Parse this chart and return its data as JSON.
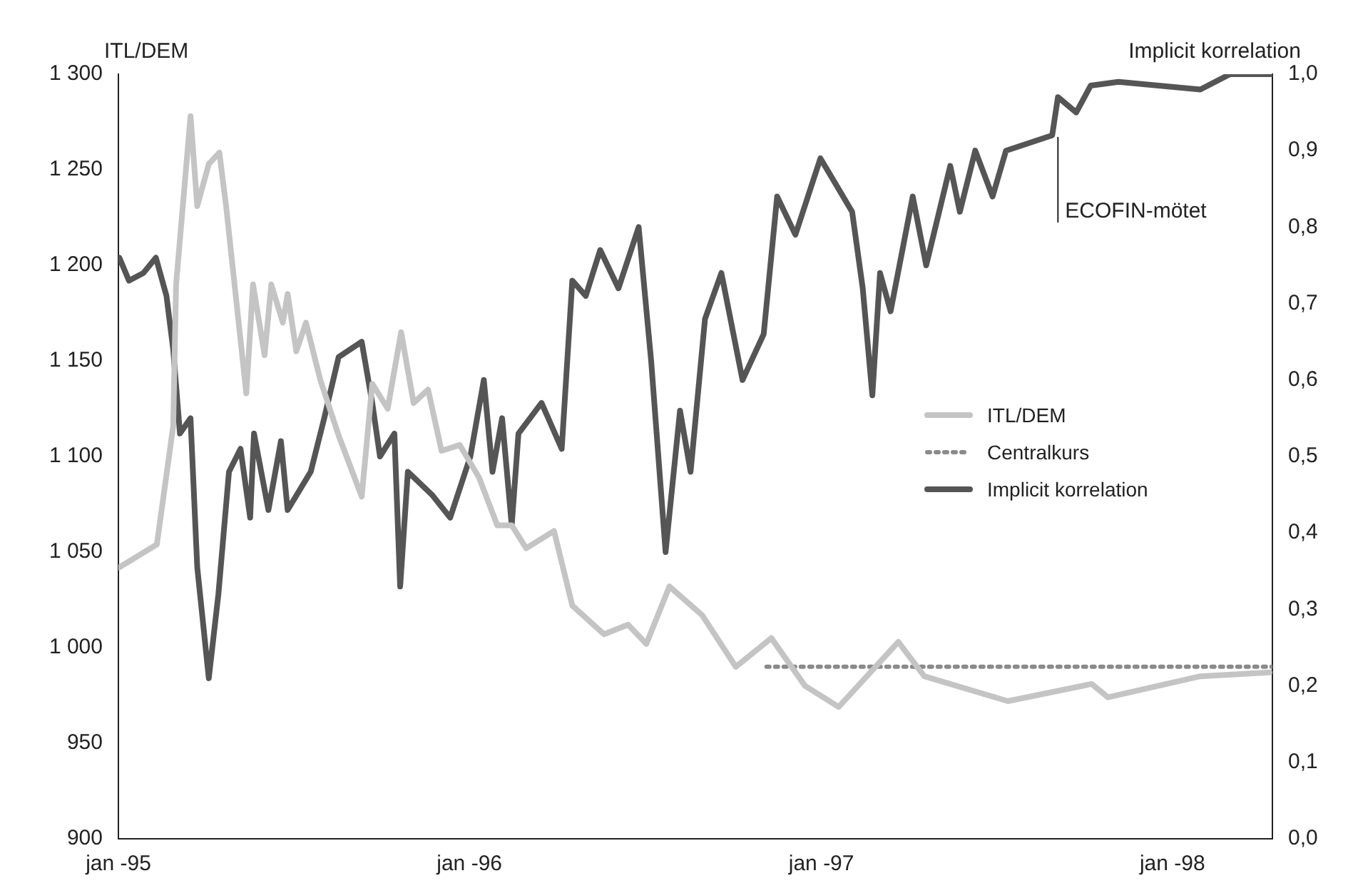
{
  "chart_data": {
    "type": "line",
    "ylabel": "ITL/DEM",
    "y2label": "Implicit korrelation",
    "xlim": [
      "1995-01-01",
      "1998-04-15"
    ],
    "xticks": [
      {
        "value": "1995-01-01",
        "label": "jan -95"
      },
      {
        "value": "1996-01-01",
        "label": "jan -96"
      },
      {
        "value": "1997-01-01",
        "label": "jan -97"
      },
      {
        "value": "1998-01-01",
        "label": "jan -98"
      }
    ],
    "ylim": [
      900,
      1300
    ],
    "yticks": [
      {
        "value": 900,
        "label": "900"
      },
      {
        "value": 950,
        "label": "950"
      },
      {
        "value": 1000,
        "label": "1 000"
      },
      {
        "value": 1050,
        "label": "1 050"
      },
      {
        "value": 1100,
        "label": "1 100"
      },
      {
        "value": 1150,
        "label": "1 150"
      },
      {
        "value": 1200,
        "label": "1 200"
      },
      {
        "value": 1250,
        "label": "1 250"
      },
      {
        "value": 1300,
        "label": "1 300"
      }
    ],
    "y2lim": [
      0,
      1
    ],
    "y2ticks": [
      {
        "value": 0,
        "label": "0,0"
      },
      {
        "value": 0.1,
        "label": "0,1"
      },
      {
        "value": 0.2,
        "label": "0,2"
      },
      {
        "value": 0.3,
        "label": "0,3"
      },
      {
        "value": 0.4,
        "label": "0,4"
      },
      {
        "value": 0.5,
        "label": "0,5"
      },
      {
        "value": 0.6,
        "label": "0,6"
      },
      {
        "value": 0.7,
        "label": "0,7"
      },
      {
        "value": 0.8,
        "label": "0,8"
      },
      {
        "value": 0.9,
        "label": "0,9"
      },
      {
        "value": 1,
        "label": "1,0"
      }
    ],
    "grid": false,
    "legend": "right",
    "marker": "none",
    "ref_lines": [
      {
        "axis": "x",
        "value": "1997-09-04",
        "label": "ECOFIN-mötet"
      }
    ],
    "series": [
      {
        "name": "ITL/DEM",
        "color": "#c4c4c4",
        "line_style": "solid",
        "x": [
          "1995-01-02",
          "1995-02-10",
          "1995-02-27",
          "1995-03-02",
          "1995-03-17",
          "1995-03-24",
          "1995-04-05",
          "1995-04-16",
          "1995-04-23",
          "1995-05-14",
          "1995-05-21",
          "1995-06-02",
          "1995-06-09",
          "1995-06-21",
          "1995-06-26",
          "1995-07-05",
          "1995-07-15",
          "1995-07-30",
          "1995-08-18",
          "1995-09-11",
          "1995-09-22",
          "1995-10-08",
          "1995-10-22",
          "1995-11-04",
          "1995-11-19",
          "1995-12-03",
          "1995-12-22",
          "1996-01-11",
          "1996-01-30",
          "1996-02-14",
          "1996-02-29",
          "1996-03-29",
          "1996-04-17",
          "1996-05-20",
          "1996-06-14",
          "1996-07-03",
          "1996-07-27",
          "1996-08-30",
          "1996-10-04",
          "1996-11-10",
          "1996-12-15",
          "1997-01-19",
          "1997-03-22",
          "1997-04-18",
          "1997-07-14",
          "1997-10-09",
          "1997-10-26",
          "1998-01-30",
          "1998-04-12"
        ],
        "values": [
          1042,
          1054,
          1116,
          1190,
          1278,
          1231,
          1253,
          1259,
          1231,
          1133,
          1190,
          1153,
          1190,
          1170,
          1185,
          1155,
          1170,
          1140,
          1111,
          1079,
          1138,
          1125,
          1165,
          1128,
          1135,
          1103,
          1106,
          1089,
          1064,
          1064,
          1052,
          1061,
          1022,
          1007,
          1012,
          1002,
          1032,
          1017,
          990,
          1005,
          980,
          969,
          1003,
          985,
          972,
          981,
          974,
          985,
          987
        ]
      },
      {
        "name": "Centralkurs",
        "color": "#8a8a8a",
        "line_style": "dotted",
        "x": [
          "1996-11-05",
          "1998-04-15"
        ],
        "values": [
          990,
          990
        ]
      },
      {
        "name": "Implicit korrelation",
        "color": "#555555",
        "line_style": "solid",
        "axis": "y2",
        "x": [
          "1995-01-02",
          "1995-01-12",
          "1995-01-27",
          "1995-02-09",
          "1995-02-20",
          "1995-02-27",
          "1995-03-06",
          "1995-03-17",
          "1995-03-24",
          "1995-04-05",
          "1995-04-15",
          "1995-04-26",
          "1995-05-08",
          "1995-05-18",
          "1995-05-22",
          "1995-06-06",
          "1995-06-19",
          "1995-06-26",
          "1995-07-20",
          "1995-08-03",
          "1995-08-18",
          "1995-09-11",
          "1995-09-22",
          "1995-09-30",
          "1995-10-15",
          "1995-10-21",
          "1995-10-29",
          "1995-11-23",
          "1995-12-12",
          "1996-01-02",
          "1996-01-16",
          "1996-01-25",
          "1996-02-04",
          "1996-02-14",
          "1996-02-21",
          "1996-03-16",
          "1996-04-06",
          "1996-04-17",
          "1996-05-01",
          "1996-05-16",
          "1996-06-04",
          "1996-06-25",
          "1996-07-08",
          "1996-07-23",
          "1996-08-07",
          "1996-08-18",
          "1996-09-02",
          "1996-09-19",
          "1996-10-11",
          "1996-11-02",
          "1996-11-16",
          "1996-12-05",
          "1996-12-31",
          "1997-02-02",
          "1997-02-13",
          "1997-02-23",
          "1997-03-03",
          "1997-03-14",
          "1997-04-06",
          "1997-04-20",
          "1997-05-15",
          "1997-05-25",
          "1997-06-10",
          "1997-06-28",
          "1997-07-12",
          "1997-08-29",
          "1997-09-04",
          "1997-09-23",
          "1997-10-08",
          "1997-11-06",
          "1998-01-30",
          "1998-03-02",
          "1998-04-15"
        ],
        "values": [
          0.76,
          0.73,
          0.74,
          0.76,
          0.71,
          0.64,
          0.53,
          0.55,
          0.355,
          0.21,
          0.32,
          0.48,
          0.51,
          0.42,
          0.53,
          0.43,
          0.52,
          0.43,
          0.48,
          0.55,
          0.63,
          0.65,
          0.57,
          0.5,
          0.53,
          0.33,
          0.48,
          0.45,
          0.42,
          0.5,
          0.6,
          0.48,
          0.55,
          0.41,
          0.53,
          0.57,
          0.51,
          0.73,
          0.71,
          0.77,
          0.72,
          0.8,
          0.625,
          0.375,
          0.56,
          0.48,
          0.68,
          0.74,
          0.6,
          0.66,
          0.84,
          0.79,
          0.89,
          0.82,
          0.72,
          0.58,
          0.74,
          0.69,
          0.84,
          0.75,
          0.88,
          0.82,
          0.9,
          0.84,
          0.9,
          0.92,
          0.97,
          0.95,
          0.985,
          0.99,
          0.98,
          1,
          1
        ]
      }
    ]
  }
}
